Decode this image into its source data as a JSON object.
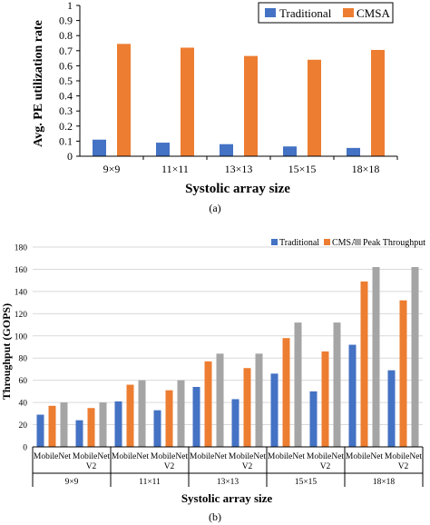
{
  "colors": {
    "traditional": "#4472c4",
    "cmsa": "#ed7d31",
    "peak": "#a5a5a5",
    "grid": "#d9d9d9"
  },
  "chart_a": {
    "caption": "(a)",
    "legend": [
      "Traditional",
      "CMSA"
    ]
  },
  "chart_b": {
    "caption": "(b)",
    "legend": [
      "Traditional",
      "CMSA",
      "Peak Throughput"
    ]
  },
  "chart_data": [
    {
      "type": "bar",
      "title": "",
      "xlabel": "Systolic array  size",
      "ylabel": "Avg. PE utilization rate",
      "ylim": [
        0,
        1
      ],
      "yticks": [
        "0",
        "0.1",
        "0.2",
        "0.3",
        "0.4",
        "0.5",
        "0.6",
        "0.7",
        "0.8",
        "0.9",
        "1"
      ],
      "grid": false,
      "legend_position": "top-right",
      "categories": [
        "9×9",
        "11×11",
        "13×13",
        "15×15",
        "18×18"
      ],
      "series": [
        {
          "name": "Traditional",
          "values": [
            0.11,
            0.09,
            0.08,
            0.065,
            0.055
          ]
        },
        {
          "name": "CMSA",
          "values": [
            0.745,
            0.72,
            0.665,
            0.64,
            0.705
          ]
        }
      ]
    },
    {
      "type": "bar",
      "title": "",
      "xlabel": "Systolic array size",
      "ylabel": "Throughput (GOPS)",
      "ylim": [
        0,
        180
      ],
      "yticks": [
        "0",
        "20",
        "40",
        "60",
        "80",
        "100",
        "120",
        "140",
        "160",
        "180"
      ],
      "grid": true,
      "legend_position": "top-right",
      "groups": [
        "9×9",
        "11×11",
        "13×13",
        "15×15",
        "18×18"
      ],
      "categories": [
        [
          "MobileNet",
          ""
        ],
        [
          "MobileNet",
          "V2"
        ],
        [
          "MobileNet",
          ""
        ],
        [
          "MobileNet",
          "V2"
        ],
        [
          "MobileNet",
          ""
        ],
        [
          "MobileNet",
          "V2"
        ],
        [
          "MobileNet",
          ""
        ],
        [
          "MobileNet",
          "V2"
        ],
        [
          "MobileNet",
          ""
        ],
        [
          "MobileNet",
          "V2"
        ]
      ],
      "series": [
        {
          "name": "Traditional",
          "values": [
            29,
            24,
            41,
            33,
            54,
            43,
            66,
            50,
            92,
            69
          ]
        },
        {
          "name": "CMSA",
          "values": [
            37,
            35,
            56,
            51,
            77,
            71,
            98,
            86,
            149,
            132
          ]
        },
        {
          "name": "Peak Throughput",
          "values": [
            40,
            40,
            60,
            60,
            84,
            84,
            112,
            112,
            162,
            162
          ]
        }
      ]
    }
  ]
}
